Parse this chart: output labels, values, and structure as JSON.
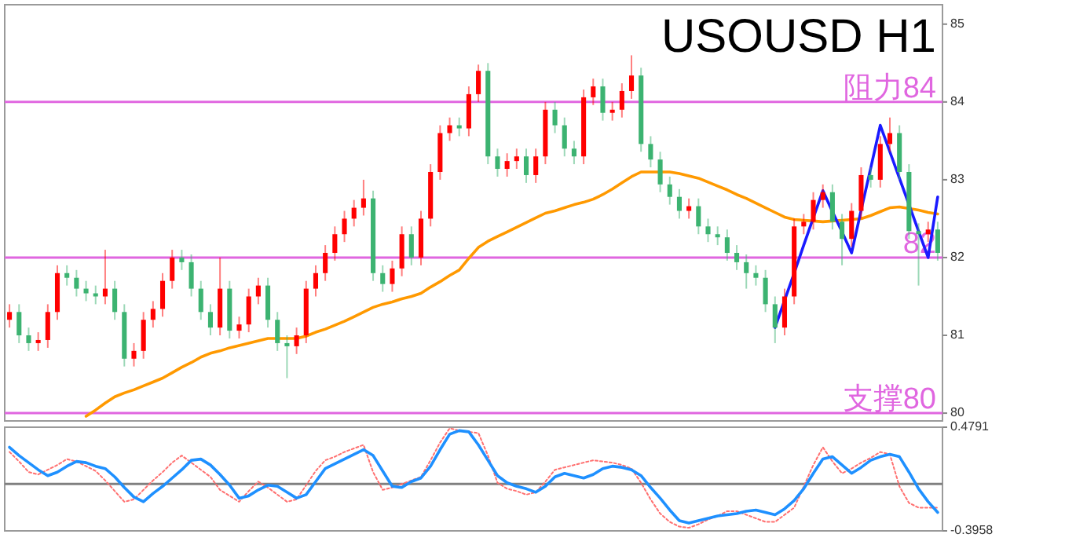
{
  "chart_data": [
    {
      "type": "candlestick",
      "title": "USOUSD H1",
      "categories": [
        null,
        null,
        null,
        null,
        null,
        null,
        null,
        null,
        null,
        null,
        null,
        null,
        null,
        null,
        null,
        null,
        null,
        null,
        null,
        null,
        null,
        null,
        null,
        null,
        null,
        null,
        null,
        null,
        null,
        null,
        null,
        null,
        null,
        null,
        null,
        null,
        null,
        null,
        null,
        null,
        null,
        null,
        null,
        null,
        null,
        null,
        null,
        null,
        null,
        null,
        null,
        null,
        null,
        null,
        null,
        null,
        null,
        null,
        null,
        null,
        null,
        null,
        null,
        null,
        null,
        null,
        null,
        null,
        null,
        null,
        null,
        null,
        null,
        null,
        null,
        null,
        null,
        null,
        null,
        null,
        null,
        null,
        null,
        null,
        null,
        null,
        null,
        null,
        null,
        null,
        null,
        null,
        null,
        null,
        null,
        null,
        null,
        null
      ],
      "ohlc": [
        [
          81.2,
          81.4,
          81.1,
          81.3
        ],
        [
          81.3,
          81.4,
          80.9,
          81.0
        ],
        [
          81.0,
          81.1,
          80.8,
          80.9
        ],
        [
          80.9,
          81.04,
          80.8,
          80.94
        ],
        [
          80.94,
          81.4,
          80.84,
          81.3
        ],
        [
          81.3,
          81.9,
          81.2,
          81.8
        ],
        [
          81.8,
          81.9,
          81.64,
          81.74
        ],
        [
          81.74,
          81.84,
          81.5,
          81.6
        ],
        [
          81.6,
          81.7,
          81.44,
          81.54
        ],
        [
          81.54,
          81.64,
          81.4,
          81.5
        ],
        [
          81.5,
          82.1,
          81.4,
          81.6
        ],
        [
          81.6,
          81.7,
          81.2,
          81.3
        ],
        [
          81.3,
          81.4,
          80.6,
          80.7
        ],
        [
          80.7,
          80.9,
          80.6,
          80.8
        ],
        [
          80.8,
          81.3,
          80.7,
          81.2
        ],
        [
          81.2,
          81.44,
          81.1,
          81.34
        ],
        [
          81.34,
          81.8,
          81.24,
          81.7
        ],
        [
          81.7,
          82.1,
          81.6,
          82.0
        ],
        [
          82.0,
          82.1,
          81.84,
          81.94
        ],
        [
          81.94,
          82.04,
          81.5,
          81.6
        ],
        [
          81.6,
          81.7,
          81.2,
          81.3
        ],
        [
          81.3,
          81.4,
          81.0,
          81.1
        ],
        [
          81.1,
          82.0,
          81.0,
          81.6
        ],
        [
          81.6,
          81.7,
          80.96,
          81.06
        ],
        [
          81.06,
          81.24,
          80.96,
          81.14
        ],
        [
          81.14,
          81.6,
          81.04,
          81.5
        ],
        [
          81.5,
          81.74,
          81.4,
          81.64
        ],
        [
          81.64,
          81.74,
          81.1,
          81.2
        ],
        [
          81.2,
          81.3,
          80.8,
          80.9
        ],
        [
          80.9,
          81.0,
          80.45,
          80.86
        ],
        [
          80.86,
          81.1,
          80.76,
          81.0
        ],
        [
          81.0,
          81.7,
          80.9,
          81.6
        ],
        [
          81.6,
          81.9,
          81.5,
          81.8
        ],
        [
          81.8,
          82.16,
          81.7,
          82.06
        ],
        [
          82.06,
          82.4,
          81.96,
          82.3
        ],
        [
          82.3,
          82.6,
          82.2,
          82.5
        ],
        [
          82.5,
          82.74,
          82.4,
          82.64
        ],
        [
          82.64,
          83.0,
          82.54,
          82.76
        ],
        [
          82.76,
          82.86,
          81.7,
          81.8
        ],
        [
          81.8,
          81.9,
          81.56,
          81.66
        ],
        [
          81.66,
          81.96,
          81.56,
          81.86
        ],
        [
          81.86,
          82.4,
          81.76,
          82.3
        ],
        [
          82.3,
          82.4,
          81.9,
          82.0
        ],
        [
          82.0,
          82.6,
          81.9,
          82.5
        ],
        [
          82.5,
          83.2,
          82.4,
          83.1
        ],
        [
          83.1,
          83.7,
          83.0,
          83.6
        ],
        [
          83.6,
          83.8,
          83.5,
          83.7
        ],
        [
          83.7,
          83.8,
          83.56,
          83.66
        ],
        [
          83.66,
          84.2,
          83.56,
          84.1
        ],
        [
          84.1,
          84.48,
          84.0,
          84.4
        ],
        [
          84.4,
          84.5,
          83.2,
          83.3
        ],
        [
          83.3,
          83.4,
          83.04,
          83.14
        ],
        [
          83.14,
          83.34,
          83.04,
          83.24
        ],
        [
          83.24,
          83.4,
          83.14,
          83.3
        ],
        [
          83.3,
          83.4,
          82.96,
          83.06
        ],
        [
          83.06,
          83.4,
          82.96,
          83.3
        ],
        [
          83.3,
          84.0,
          83.2,
          83.9
        ],
        [
          83.9,
          84.0,
          83.6,
          83.7
        ],
        [
          83.7,
          83.8,
          83.3,
          83.4
        ],
        [
          83.4,
          83.5,
          83.2,
          83.3
        ],
        [
          83.3,
          84.16,
          83.2,
          84.06
        ],
        [
          84.06,
          84.3,
          83.96,
          84.2
        ],
        [
          84.2,
          84.3,
          83.76,
          83.86
        ],
        [
          83.86,
          84.0,
          83.76,
          83.9
        ],
        [
          83.9,
          84.24,
          83.8,
          84.14
        ],
        [
          84.14,
          84.6,
          84.04,
          84.34
        ],
        [
          84.34,
          84.44,
          83.36,
          83.46
        ],
        [
          83.46,
          83.56,
          83.16,
          83.26
        ],
        [
          83.26,
          83.36,
          82.84,
          82.94
        ],
        [
          82.94,
          83.04,
          82.68,
          82.78
        ],
        [
          82.78,
          82.88,
          82.5,
          82.6
        ],
        [
          82.6,
          82.76,
          82.5,
          82.66
        ],
        [
          82.66,
          82.76,
          82.3,
          82.4
        ],
        [
          82.4,
          82.5,
          82.2,
          82.3
        ],
        [
          82.3,
          82.4,
          82.16,
          82.26
        ],
        [
          82.26,
          82.36,
          81.96,
          82.06
        ],
        [
          82.06,
          82.16,
          81.84,
          81.94
        ],
        [
          81.94,
          82.04,
          81.6,
          81.8
        ],
        [
          81.8,
          81.9,
          81.64,
          81.74
        ],
        [
          81.74,
          81.84,
          81.3,
          81.4
        ],
        [
          81.4,
          81.5,
          80.9,
          81.1
        ],
        [
          81.1,
          81.6,
          81.0,
          81.5
        ],
        [
          81.5,
          82.5,
          81.4,
          82.4
        ],
        [
          82.4,
          82.56,
          82.3,
          82.46
        ],
        [
          82.46,
          82.84,
          82.36,
          82.74
        ],
        [
          82.74,
          82.94,
          82.64,
          82.84
        ],
        [
          82.84,
          82.94,
          82.36,
          82.46
        ],
        [
          82.46,
          82.56,
          81.9,
          82.24
        ],
        [
          82.24,
          82.7,
          82.14,
          82.6
        ],
        [
          82.6,
          83.16,
          82.5,
          83.06
        ],
        [
          83.06,
          83.16,
          82.9,
          83.0
        ],
        [
          83.0,
          83.56,
          82.9,
          83.46
        ],
        [
          83.46,
          83.8,
          83.36,
          83.6
        ],
        [
          83.6,
          83.7,
          83.0,
          83.1
        ],
        [
          83.1,
          83.2,
          82.24,
          82.34
        ],
        [
          82.34,
          82.44,
          81.64,
          82.3
        ],
        [
          82.3,
          82.46,
          82.2,
          82.36
        ],
        [
          82.36,
          82.46,
          81.96,
          82.06
        ]
      ],
      "colors": [
        "#ff0000",
        "#3cb371",
        "#3cb371",
        "#ff0000",
        "#ff0000",
        "#ff0000",
        "#3cb371",
        "#3cb371",
        "#3cb371",
        "#3cb371",
        "#ff0000",
        "#3cb371",
        "#3cb371",
        "#ff0000",
        "#ff0000",
        "#ff0000",
        "#ff0000",
        "#ff0000",
        "#3cb371",
        "#3cb371",
        "#3cb371",
        "#3cb371",
        "#ff0000",
        "#3cb371",
        "#ff0000",
        "#ff0000",
        "#ff0000",
        "#3cb371",
        "#3cb371",
        "#3cb371",
        "#ff0000",
        "#ff0000",
        "#ff0000",
        "#ff0000",
        "#ff0000",
        "#ff0000",
        "#ff0000",
        "#ff0000",
        "#3cb371",
        "#3cb371",
        "#ff0000",
        "#ff0000",
        "#3cb371",
        "#ff0000",
        "#ff0000",
        "#ff0000",
        "#ff0000",
        "#3cb371",
        "#ff0000",
        "#ff0000",
        "#3cb371",
        "#3cb371",
        "#ff0000",
        "#ff0000",
        "#3cb371",
        "#ff0000",
        "#ff0000",
        "#3cb371",
        "#3cb371",
        "#3cb371",
        "#ff0000",
        "#ff0000",
        "#3cb371",
        "#ff0000",
        "#ff0000",
        "#ff0000",
        "#3cb371",
        "#3cb371",
        "#3cb371",
        "#3cb371",
        "#3cb371",
        "#ff0000",
        "#3cb371",
        "#3cb371",
        "#3cb371",
        "#3cb371",
        "#3cb371",
        "#3cb371",
        "#3cb371",
        "#3cb371",
        "#3cb371",
        "#ff0000",
        "#ff0000",
        "#ff0000",
        "#ff0000",
        "#ff0000",
        "#3cb371",
        "#3cb371",
        "#ff0000",
        "#ff0000",
        "#3cb371",
        "#ff0000",
        "#ff0000",
        "#3cb371",
        "#3cb371",
        "#3cb371",
        "#ff0000",
        "#3cb371"
      ],
      "series": [
        {
          "type": "line",
          "color": "#ff9900",
          "values": [
            null,
            null,
            null,
            null,
            null,
            null,
            null,
            null,
            79.96,
            80.04,
            80.13,
            80.21,
            80.26,
            80.3,
            80.35,
            80.4,
            80.45,
            80.52,
            80.59,
            80.65,
            80.72,
            80.77,
            80.8,
            80.84,
            80.87,
            80.9,
            80.93,
            80.96,
            80.96,
            80.96,
            80.96,
            80.99,
            81.04,
            81.08,
            81.13,
            81.18,
            81.24,
            81.3,
            81.36,
            81.4,
            81.43,
            81.47,
            81.5,
            81.54,
            81.62,
            81.69,
            81.77,
            81.84,
            81.99,
            82.13,
            82.21,
            82.27,
            82.33,
            82.39,
            82.45,
            82.51,
            82.57,
            82.6,
            82.64,
            82.68,
            82.71,
            82.75,
            82.81,
            82.88,
            82.96,
            83.04,
            83.1,
            83.1,
            83.1,
            83.1,
            83.08,
            83.05,
            83.02,
            82.97,
            82.92,
            82.87,
            82.81,
            82.76,
            82.7,
            82.64,
            82.58,
            82.52,
            82.49,
            82.48,
            82.47,
            82.46,
            82.47,
            82.48,
            82.49,
            82.5,
            82.54,
            82.59,
            82.64,
            82.65,
            82.63,
            82.61,
            82.58,
            82.56
          ]
        },
        {
          "type": "line",
          "color": "#1a1aff",
          "values": [
            null,
            null,
            null,
            null,
            null,
            null,
            null,
            null,
            null,
            null,
            null,
            null,
            null,
            null,
            null,
            null,
            null,
            null,
            null,
            null,
            null,
            null,
            null,
            null,
            null,
            null,
            null,
            null,
            null,
            null,
            null,
            null,
            null,
            null,
            null,
            null,
            null,
            null,
            null,
            null,
            null,
            null,
            null,
            null,
            null,
            null,
            null,
            null,
            null,
            null,
            null,
            null,
            null,
            null,
            null,
            null,
            null,
            null,
            null,
            null,
            null,
            null,
            null,
            null,
            null,
            null,
            null,
            null,
            null,
            null,
            null,
            null,
            null,
            null,
            null,
            null,
            null,
            null,
            null,
            null,
            81.1,
            81.45,
            81.8,
            82.16,
            82.51,
            82.86,
            82.59,
            82.33,
            82.06,
            82.61,
            83.15,
            83.7,
            83.36,
            83.02,
            82.68,
            82.34,
            82.0,
            82.78
          ]
        }
      ],
      "ylim": [
        79.9,
        85.25
      ],
      "yticks": [
        80,
        81,
        82,
        83,
        84,
        85
      ],
      "tick_labels": "y",
      "ref_lines": [
        {
          "axis": "y",
          "value": 84,
          "label": "阻力84",
          "color": "#e066e0"
        },
        {
          "axis": "y",
          "value": 82,
          "label": "82",
          "color": "#e066e0"
        },
        {
          "axis": "y",
          "value": 80,
          "label": "支撑80",
          "color": "#e066e0"
        }
      ]
    },
    {
      "type": "line",
      "ylim": [
        -0.3958,
        0.4791
      ],
      "yticks": [
        -0.3958,
        0.4791
      ],
      "tick_labels": "y",
      "categories": [
        null,
        null,
        null,
        null,
        null,
        null,
        null,
        null,
        null,
        null,
        null,
        null,
        null,
        null,
        null,
        null,
        null,
        null,
        null,
        null,
        null,
        null,
        null,
        null,
        null,
        null,
        null,
        null,
        null,
        null,
        null,
        null,
        null,
        null,
        null,
        null,
        null,
        null,
        null,
        null,
        null,
        null,
        null,
        null,
        null,
        null,
        null,
        null,
        null,
        null,
        null,
        null,
        null,
        null,
        null,
        null,
        null,
        null,
        null,
        null,
        null,
        null,
        null,
        null,
        null,
        null,
        null,
        null,
        null,
        null,
        null,
        null,
        null,
        null,
        null,
        null,
        null,
        null,
        null,
        null,
        null,
        null,
        null,
        null,
        null,
        null,
        null,
        null,
        null,
        null,
        null,
        null,
        null,
        null,
        null,
        null,
        null,
        null
      ],
      "series": [
        {
          "color": "#ff7070",
          "line_style": "dotted",
          "values": [
            0.27,
            0.19,
            0.1,
            0.08,
            0.12,
            0.16,
            0.21,
            0.19,
            0.15,
            0.11,
            0.03,
            -0.06,
            -0.15,
            -0.13,
            -0.05,
            0.03,
            0.1,
            0.18,
            0.24,
            0.18,
            0.12,
            0.06,
            -0.05,
            -0.1,
            -0.15,
            -0.06,
            0.02,
            -0.03,
            -0.09,
            -0.15,
            -0.13,
            -0.01,
            0.11,
            0.2,
            0.23,
            0.27,
            0.3,
            0.33,
            0.1,
            -0.05,
            -0.03,
            0.0,
            0.03,
            0.06,
            0.2,
            0.35,
            0.47,
            0.45,
            0.44,
            0.43,
            0.24,
            0.01,
            -0.04,
            -0.06,
            -0.09,
            -0.07,
            0.02,
            0.12,
            0.14,
            0.16,
            0.18,
            0.2,
            0.19,
            0.18,
            0.16,
            0.13,
            0.01,
            -0.13,
            -0.25,
            -0.32,
            -0.36,
            -0.37,
            -0.34,
            -0.3,
            -0.27,
            -0.23,
            -0.23,
            -0.26,
            -0.29,
            -0.32,
            -0.32,
            -0.26,
            -0.2,
            -0.02,
            0.16,
            0.31,
            0.19,
            0.09,
            0.13,
            0.18,
            0.22,
            0.27,
            0.25,
            -0.02,
            -0.16,
            -0.2,
            -0.2,
            -0.2
          ]
        },
        {
          "color": "#1e90ff",
          "values": [
            0.31,
            0.24,
            0.18,
            0.12,
            0.07,
            0.1,
            0.15,
            0.19,
            0.18,
            0.15,
            0.13,
            0.06,
            -0.03,
            -0.11,
            -0.15,
            -0.08,
            -0.02,
            0.05,
            0.12,
            0.2,
            0.21,
            0.16,
            0.08,
            -0.01,
            -0.12,
            -0.1,
            -0.05,
            -0.01,
            -0.02,
            -0.07,
            -0.12,
            -0.09,
            0.02,
            0.13,
            0.17,
            0.21,
            0.25,
            0.29,
            0.24,
            0.11,
            -0.02,
            -0.03,
            0.02,
            0.05,
            0.15,
            0.29,
            0.42,
            0.45,
            0.44,
            0.33,
            0.2,
            0.07,
            0.01,
            -0.02,
            -0.04,
            -0.07,
            -0.02,
            0.06,
            0.09,
            0.07,
            0.05,
            0.08,
            0.13,
            0.15,
            0.14,
            0.12,
            0.07,
            -0.03,
            -0.12,
            -0.22,
            -0.31,
            -0.33,
            -0.31,
            -0.29,
            -0.27,
            -0.26,
            -0.25,
            -0.23,
            -0.22,
            -0.24,
            -0.26,
            -0.21,
            -0.14,
            -0.04,
            0.09,
            0.21,
            0.23,
            0.16,
            0.09,
            0.14,
            0.2,
            0.23,
            0.25,
            0.23,
            0.1,
            -0.04,
            -0.15,
            -0.24
          ]
        }
      ],
      "ref_lines": [
        {
          "axis": "y",
          "value": 0,
          "color": "#808080"
        }
      ]
    }
  ]
}
